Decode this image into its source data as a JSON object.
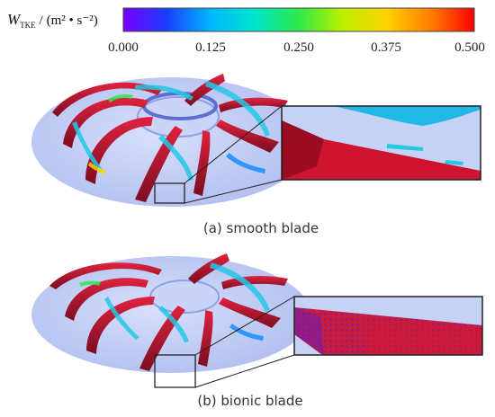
{
  "colorbar": {
    "label_symbol": "W",
    "label_subscript": "TKE",
    "label_unit": "/ (m² • s⁻²)",
    "ticks": [
      "0.000",
      "0.125",
      "0.250",
      "0.375",
      "0.500"
    ],
    "range": [
      0.0,
      0.5
    ],
    "colormap": [
      "#7a00ff",
      "#1a3cff",
      "#00b7ff",
      "#00e6c8",
      "#2ee84a",
      "#b7f000",
      "#ffd200",
      "#ff7a00",
      "#ff0000"
    ]
  },
  "panels": [
    {
      "id": "a",
      "caption": "(a)  smooth blade"
    },
    {
      "id": "b",
      "caption": "(b)  bionic blade"
    }
  ],
  "colors": {
    "disk": "#b9c6f2",
    "blade_red": "#c4122f",
    "blade_dark": "#6b0c1c",
    "vortex_cyan": "#22c8e6"
  }
}
